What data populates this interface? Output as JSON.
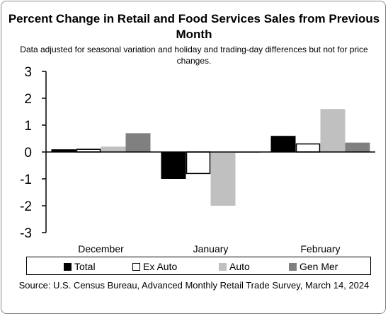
{
  "chart_data": {
    "type": "bar",
    "title": "Percent Change in Retail and Food Services Sales from Previous Month",
    "subtitle": "Data adjusted for seasonal variation and holiday and trading-day differences but not for price changes.",
    "categories": [
      "December",
      "January",
      "February"
    ],
    "series": [
      {
        "name": "Total",
        "values": [
          0.1,
          -1.0,
          0.6
        ],
        "color": "#000000"
      },
      {
        "name": "Ex Auto",
        "values": [
          0.1,
          -0.8,
          0.3
        ],
        "color": "#ffffff"
      },
      {
        "name": "Auto",
        "values": [
          0.2,
          -2.0,
          1.6
        ],
        "color": "#c0c0c0"
      },
      {
        "name": "Gen Mer",
        "values": [
          0.7,
          0.0,
          0.35
        ],
        "color": "#808080"
      }
    ],
    "ylim": [
      -3,
      3
    ],
    "yticks": [
      "3",
      "2",
      "1",
      "0",
      "-1",
      "-2",
      "-3"
    ],
    "grid": false,
    "legend_position": "bottom",
    "source": "Source: U.S. Census Bureau, Advanced Monthly Retail Trade Survey, March 14, 2024"
  }
}
